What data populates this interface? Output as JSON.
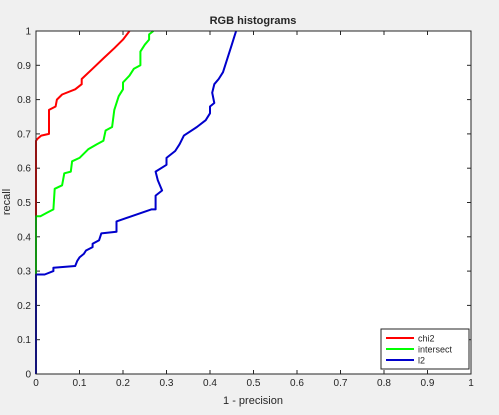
{
  "chart_data": {
    "type": "line",
    "title": "RGB histograms",
    "xlabel": "1 - precision",
    "ylabel": "recall",
    "xlim": [
      0,
      1
    ],
    "ylim": [
      0,
      1
    ],
    "xticks": [
      "0",
      "0.1",
      "0.2",
      "0.3",
      "0.4",
      "0.5",
      "0.6",
      "0.7",
      "0.8",
      "0.9",
      "1"
    ],
    "yticks": [
      "0",
      "0.1",
      "0.2",
      "0.3",
      "0.4",
      "0.5",
      "0.6",
      "0.7",
      "0.8",
      "0.9",
      "1"
    ],
    "grid": false,
    "legend_position": "bottom-right",
    "series": [
      {
        "name": "chi2",
        "color": "#ff0000",
        "points": [
          [
            0,
            0
          ],
          [
            0,
            0.68
          ],
          [
            0.003,
            0.685
          ],
          [
            0.012,
            0.695
          ],
          [
            0.03,
            0.7
          ],
          [
            0.03,
            0.77
          ],
          [
            0.045,
            0.78
          ],
          [
            0.048,
            0.8
          ],
          [
            0.06,
            0.815
          ],
          [
            0.09,
            0.83
          ],
          [
            0.105,
            0.845
          ],
          [
            0.105,
            0.86
          ],
          [
            0.13,
            0.89
          ],
          [
            0.155,
            0.92
          ],
          [
            0.18,
            0.95
          ],
          [
            0.2,
            0.975
          ],
          [
            0.215,
            1.0
          ]
        ]
      },
      {
        "name": "intersect",
        "color": "#00ff00",
        "points": [
          [
            0,
            0
          ],
          [
            0,
            0.46
          ],
          [
            0.01,
            0.46
          ],
          [
            0.025,
            0.47
          ],
          [
            0.04,
            0.48
          ],
          [
            0.043,
            0.54
          ],
          [
            0.06,
            0.55
          ],
          [
            0.065,
            0.585
          ],
          [
            0.08,
            0.59
          ],
          [
            0.083,
            0.62
          ],
          [
            0.1,
            0.63
          ],
          [
            0.12,
            0.655
          ],
          [
            0.14,
            0.67
          ],
          [
            0.155,
            0.68
          ],
          [
            0.16,
            0.71
          ],
          [
            0.175,
            0.72
          ],
          [
            0.18,
            0.77
          ],
          [
            0.19,
            0.81
          ],
          [
            0.2,
            0.83
          ],
          [
            0.2,
            0.85
          ],
          [
            0.215,
            0.87
          ],
          [
            0.225,
            0.89
          ],
          [
            0.24,
            0.9
          ],
          [
            0.24,
            0.94
          ],
          [
            0.25,
            0.96
          ],
          [
            0.26,
            0.975
          ],
          [
            0.26,
            0.99
          ],
          [
            0.27,
            1.0
          ]
        ]
      },
      {
        "name": "l2",
        "color": "#0000cc",
        "points": [
          [
            0,
            0
          ],
          [
            0,
            0.29
          ],
          [
            0.02,
            0.29
          ],
          [
            0.04,
            0.3
          ],
          [
            0.04,
            0.31
          ],
          [
            0.09,
            0.315
          ],
          [
            0.095,
            0.33
          ],
          [
            0.1,
            0.34
          ],
          [
            0.11,
            0.35
          ],
          [
            0.115,
            0.36
          ],
          [
            0.13,
            0.37
          ],
          [
            0.13,
            0.38
          ],
          [
            0.145,
            0.39
          ],
          [
            0.15,
            0.41
          ],
          [
            0.185,
            0.415
          ],
          [
            0.185,
            0.445
          ],
          [
            0.22,
            0.46
          ],
          [
            0.265,
            0.48
          ],
          [
            0.275,
            0.48
          ],
          [
            0.275,
            0.52
          ],
          [
            0.29,
            0.535
          ],
          [
            0.28,
            0.565
          ],
          [
            0.275,
            0.59
          ],
          [
            0.3,
            0.61
          ],
          [
            0.3,
            0.63
          ],
          [
            0.32,
            0.65
          ],
          [
            0.33,
            0.67
          ],
          [
            0.34,
            0.695
          ],
          [
            0.37,
            0.72
          ],
          [
            0.39,
            0.74
          ],
          [
            0.4,
            0.76
          ],
          [
            0.4,
            0.78
          ],
          [
            0.41,
            0.79
          ],
          [
            0.405,
            0.82
          ],
          [
            0.41,
            0.845
          ],
          [
            0.42,
            0.86
          ],
          [
            0.43,
            0.88
          ],
          [
            0.44,
            0.92
          ],
          [
            0.45,
            0.96
          ],
          [
            0.455,
            0.98
          ],
          [
            0.46,
            1.0
          ]
        ]
      }
    ]
  }
}
